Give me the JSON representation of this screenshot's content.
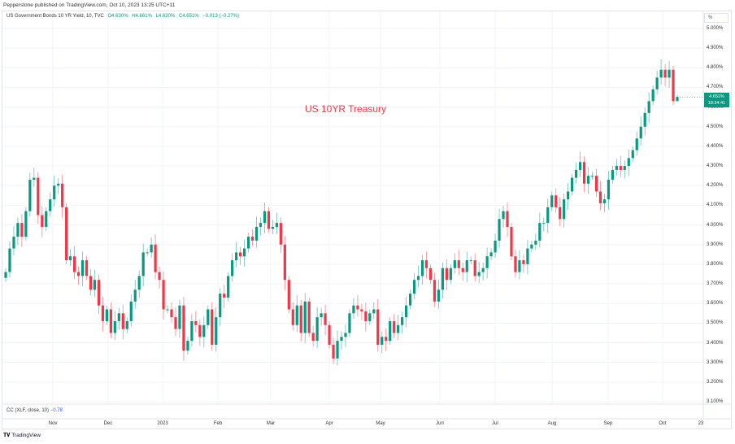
{
  "header": {
    "published": "Pepperstone published on TradingView.com, Oct 10, 2023 13:25 UTC+11"
  },
  "legend": {
    "symbol": "US Government Bonds 10 YR Yield, 10, TVC",
    "open": "O4.630%",
    "high": "H4.661%",
    "low": "L4.630%",
    "close": "C4.651%",
    "change": "−0.013 (−0.27%)"
  },
  "price_tag": {
    "value": "4.651%",
    "countdown": "18:34:41"
  },
  "unit_label": "%",
  "indicator": {
    "label": "CC (XLF, close, 10)",
    "value": "−0.78"
  },
  "footer": {
    "logo": "TradingView"
  },
  "colors": {
    "up": "#089981",
    "down": "#f23645",
    "title": "#f23645"
  },
  "chart_data": {
    "type": "candlestick",
    "title": "US 10YR Treasury",
    "ylim": [
      3.1,
      5.0
    ],
    "grid": true,
    "y_ticks": [
      "5.000%",
      "4.900%",
      "4.800%",
      "4.700%",
      "4.600%",
      "4.500%",
      "4.400%",
      "4.300%",
      "4.200%",
      "4.100%",
      "4.000%",
      "3.900%",
      "3.800%",
      "3.700%",
      "3.600%",
      "3.500%",
      "3.400%",
      "3.300%",
      "3.200%",
      "3.100%"
    ],
    "x_ticks": [
      "Nov",
      "Dec",
      "2023",
      "Feb",
      "Mar",
      "Apr",
      "May",
      "Jun",
      "Jul",
      "Aug",
      "Sep",
      "Oct",
      "23"
    ],
    "last_candle": {
      "open": 4.63,
      "high": 4.661,
      "low": 4.63,
      "close": 4.651
    },
    "closes": [
      3.76,
      3.88,
      3.94,
      4.01,
      3.94,
      4.07,
      4.23,
      4.24,
      4.05,
      3.99,
      4.07,
      4.13,
      4.2,
      4.21,
      4.09,
      3.82,
      3.84,
      3.76,
      3.74,
      3.82,
      3.74,
      3.67,
      3.72,
      3.59,
      3.51,
      3.57,
      3.45,
      3.51,
      3.55,
      3.47,
      3.51,
      3.61,
      3.67,
      3.74,
      3.86,
      3.86,
      3.9,
      3.76,
      3.72,
      3.57,
      3.57,
      3.53,
      3.47,
      3.59,
      3.36,
      3.41,
      3.51,
      3.49,
      3.43,
      3.49,
      3.57,
      3.39,
      3.53,
      3.65,
      3.63,
      3.74,
      3.82,
      3.86,
      3.84,
      3.88,
      3.94,
      3.92,
      3.99,
      4.01,
      4.07,
      3.98,
      3.99,
      4.01,
      3.9,
      3.72,
      3.57,
      3.49,
      3.59,
      3.45,
      3.61,
      3.45,
      3.41,
      3.53,
      3.55,
      3.49,
      3.39,
      3.32,
      3.41,
      3.43,
      3.45,
      3.55,
      3.59,
      3.57,
      3.56,
      3.51,
      3.55,
      3.57,
      3.39,
      3.43,
      3.41,
      3.51,
      3.45,
      3.49,
      3.53,
      3.59,
      3.65,
      3.72,
      3.74,
      3.82,
      3.78,
      3.72,
      3.61,
      3.67,
      3.78,
      3.72,
      3.78,
      3.82,
      3.78,
      3.76,
      3.82,
      3.82,
      3.74,
      3.76,
      3.78,
      3.84,
      3.86,
      3.92,
      4.03,
      4.07,
      3.99,
      3.84,
      3.76,
      3.82,
      3.8,
      3.88,
      3.9,
      3.92,
      4.01,
      4.01,
      4.09,
      4.15,
      4.09,
      4.03,
      4.13,
      4.17,
      4.24,
      4.28,
      4.32,
      4.21,
      4.25,
      4.25,
      4.17,
      4.11,
      4.13,
      4.23,
      4.28,
      4.3,
      4.28,
      4.3,
      4.34,
      4.38,
      4.44,
      4.5,
      4.57,
      4.63,
      4.69,
      4.75,
      4.79,
      4.75,
      4.79,
      4.63,
      4.651
    ]
  }
}
